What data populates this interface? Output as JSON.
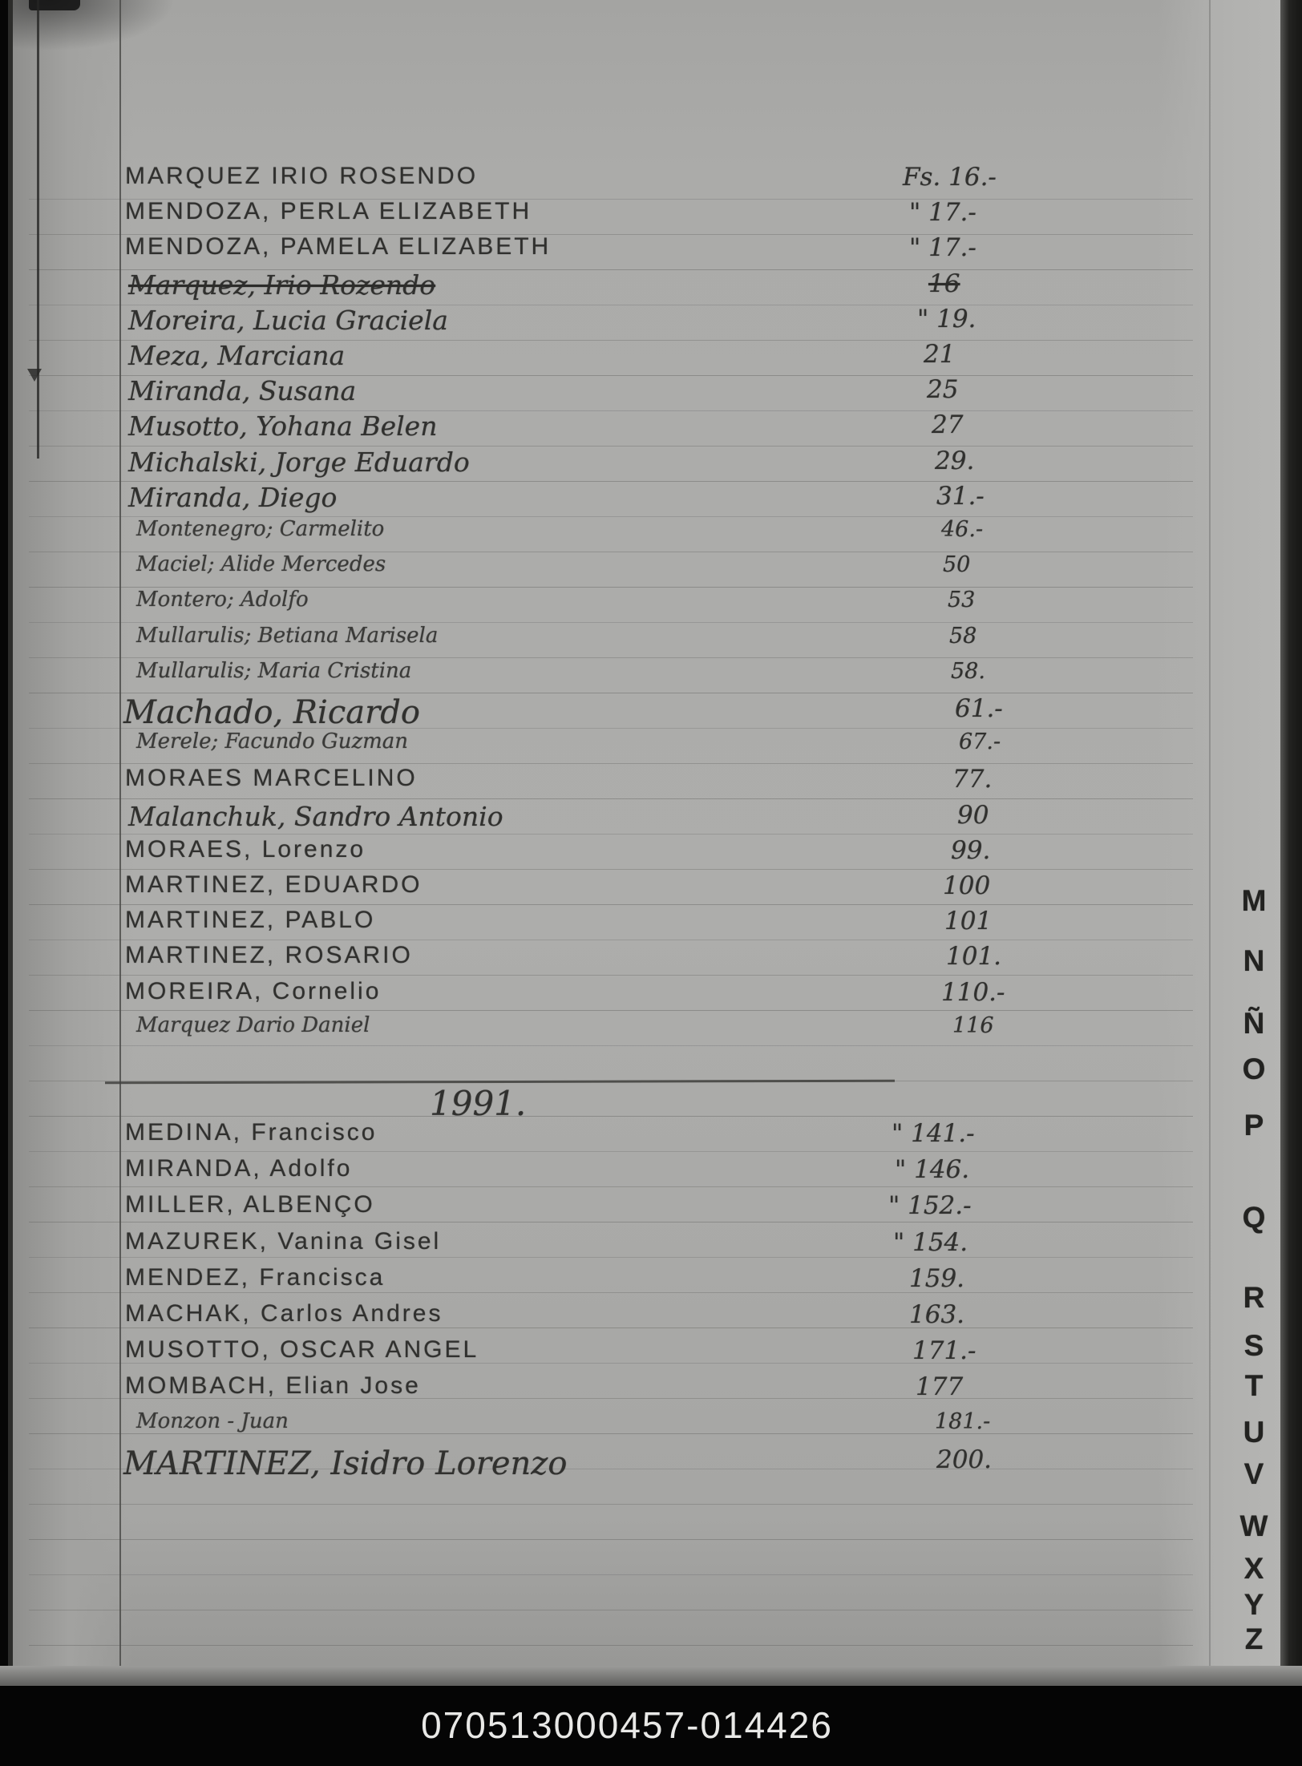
{
  "page": {
    "footer_code": "070513000457-014426",
    "description": "Handwritten alphabetical index page (letter M) of a registry book"
  },
  "colors": {
    "paper": "#ababa9",
    "ink": "#30302e",
    "ruled_line": "#5d5d5b",
    "spine": "#232321",
    "footer_bg": "#050505",
    "footer_text": "#e8e8e6",
    "tab_ink": "#222220"
  },
  "index_tabs": {
    "letters": [
      "M",
      "N",
      "Ñ",
      "O",
      "P",
      "Q",
      "R",
      "S",
      "T",
      "U",
      "V",
      "W",
      "X",
      "Y",
      "Z"
    ]
  },
  "sections": [
    {
      "year": "",
      "entries": [
        {
          "name": "MARQUEZ IRIO ROSENDO",
          "folio": "Fs. 16.-",
          "struck": false,
          "style": "print"
        },
        {
          "name": "MENDOZA, PERLA ELIZABETH",
          "folio": "\" 17.-",
          "struck": false,
          "style": "print"
        },
        {
          "name": "MENDOZA, PAMELA ELIZABETH",
          "folio": "\" 17.-",
          "struck": false,
          "style": "print"
        },
        {
          "name": "Marquez, Irio Rozendo",
          "folio": "16",
          "struck": true,
          "style": "cursive"
        },
        {
          "name": "Moreira, Lucia Graciela",
          "folio": "\" 19.",
          "struck": false,
          "style": "cursive"
        },
        {
          "name": "Meza, Marciana",
          "folio": "21",
          "struck": false,
          "style": "cursive"
        },
        {
          "name": "Miranda, Susana",
          "folio": "25",
          "struck": false,
          "style": "cursive"
        },
        {
          "name": "Musotto, Yohana Belen",
          "folio": "27",
          "struck": false,
          "style": "cursive"
        },
        {
          "name": "Michalski, Jorge Eduardo",
          "folio": "29.",
          "struck": false,
          "style": "cursive"
        },
        {
          "name": "Miranda, Diego",
          "folio": "31.-",
          "struck": false,
          "style": "cursive"
        },
        {
          "name": "Montenegro; Carmelito",
          "folio": "46.-",
          "struck": false,
          "style": "cursive-sm"
        },
        {
          "name": "Maciel; Alide Mercedes",
          "folio": "50",
          "struck": false,
          "style": "cursive-sm"
        },
        {
          "name": "Montero; Adolfo",
          "folio": "53",
          "struck": false,
          "style": "cursive-sm"
        },
        {
          "name": "Mullarulis; Betiana Marisela",
          "folio": "58",
          "struck": false,
          "style": "cursive-sm"
        },
        {
          "name": "Mullarulis; Maria Cristina",
          "folio": "58.",
          "struck": false,
          "style": "cursive-sm"
        },
        {
          "name": "Machado, Ricardo",
          "folio": "61.-",
          "struck": false,
          "style": "cursive-lg"
        },
        {
          "name": "Merele; Facundo Guzman",
          "folio": "67.-",
          "struck": false,
          "style": "cursive-sm"
        },
        {
          "name": "MORAES MARCELINO",
          "folio": "77.",
          "struck": false,
          "style": "print"
        },
        {
          "name": "Malanchuk, Sandro Antonio",
          "folio": "90",
          "struck": false,
          "style": "cursive"
        },
        {
          "name": "MORAES, Lorenzo",
          "folio": "99.",
          "struck": false,
          "style": "print"
        },
        {
          "name": "MARTINEZ, EDUARDO",
          "folio": "100",
          "struck": false,
          "style": "print"
        },
        {
          "name": "MARTINEZ, PABLO",
          "folio": "101",
          "struck": false,
          "style": "print"
        },
        {
          "name": "MARTINEZ, ROSARIO",
          "folio": "101.",
          "struck": false,
          "style": "print"
        },
        {
          "name": "MOREIRA, Cornelio",
          "folio": "110.-",
          "struck": false,
          "style": "print"
        },
        {
          "name": "Marquez Dario Daniel",
          "folio": "116",
          "struck": false,
          "style": "cursive-sm"
        }
      ]
    },
    {
      "year": "1991.",
      "entries": [
        {
          "name": "MEDINA, Francisco",
          "folio": "\" 141.-",
          "struck": false,
          "style": "print"
        },
        {
          "name": "MIRANDA, Adolfo",
          "folio": "\" 146.",
          "struck": false,
          "style": "print"
        },
        {
          "name": "MILLER, ALBENÇO",
          "folio": "\" 152.-",
          "struck": false,
          "style": "print"
        },
        {
          "name": "MAZUREK, Vanina Gisel",
          "folio": "\" 154.",
          "struck": false,
          "style": "print"
        },
        {
          "name": "MENDEZ, Francisca",
          "folio": "159.",
          "struck": false,
          "style": "print"
        },
        {
          "name": "MACHAK, Carlos Andres",
          "folio": "163.",
          "struck": false,
          "style": "print"
        },
        {
          "name": "MUSOTTO, OSCAR ANGEL",
          "folio": "171.-",
          "struck": false,
          "style": "print"
        },
        {
          "name": "MOMBACH, Elian Jose",
          "folio": "177",
          "struck": false,
          "style": "print"
        },
        {
          "name": "Monzon - Juan",
          "folio": "181.-",
          "struck": false,
          "style": "cursive-sm"
        },
        {
          "name": "MARTINEZ, Isidro Lorenzo",
          "folio": "200.",
          "struck": false,
          "style": "cursive-lg"
        }
      ]
    }
  ]
}
